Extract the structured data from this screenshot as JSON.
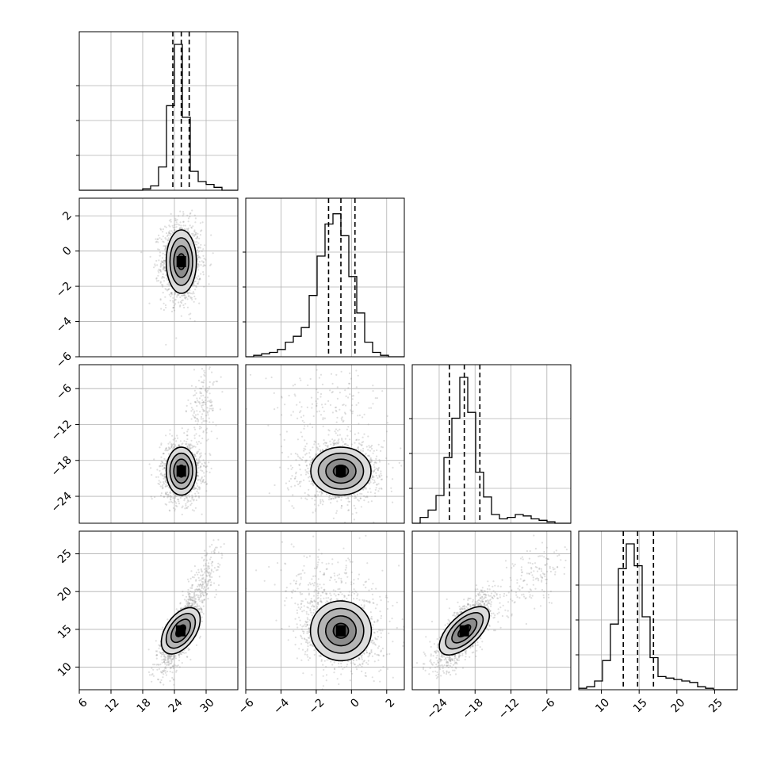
{
  "chart_data": {
    "type": "corner",
    "parameters": [
      {
        "ticks": [
          6,
          12,
          18,
          24,
          30
        ],
        "range": [
          6,
          36
        ]
      },
      {
        "ticks": [
          -6,
          -4,
          -2,
          0,
          2
        ],
        "range": [
          -6,
          3
        ]
      },
      {
        "ticks": [
          -24,
          -18,
          -12,
          -6
        ],
        "range": [
          -28.5,
          -2
        ]
      },
      {
        "ticks": [
          10,
          15,
          20,
          25
        ],
        "range": [
          7,
          28
        ]
      }
    ],
    "tick_labels": {
      "p0": [
        "6",
        "12",
        "18",
        "24",
        "30"
      ],
      "p1": [
        "−6",
        "−4",
        "−2",
        "0",
        "2"
      ],
      "p2": [
        "−24",
        "−18",
        "−12",
        "−6"
      ],
      "p3": [
        "10",
        "15",
        "20",
        "25"
      ]
    },
    "quantiles": [
      [
        23.7,
        25.3,
        26.8
      ],
      [
        -1.3,
        -0.6,
        0.2
      ],
      [
        -22.3,
        -19.8,
        -17.2
      ],
      [
        12.9,
        14.8,
        16.9
      ]
    ],
    "histograms": [
      {
        "edges": [
          6,
          7.5,
          9,
          10.5,
          12,
          13.5,
          15,
          16.5,
          18,
          19.5,
          21,
          22.5,
          24,
          25.5,
          27,
          28.5,
          30,
          31.5,
          33,
          34.5,
          36
        ],
        "counts": [
          0,
          0,
          0,
          0,
          0,
          0,
          0,
          0,
          0.01,
          0.03,
          0.16,
          0.58,
          1.0,
          0.5,
          0.13,
          0.06,
          0.04,
          0.02,
          0,
          0
        ]
      },
      {
        "edges": [
          -6,
          -5.55,
          -5.1,
          -4.65,
          -4.2,
          -3.75,
          -3.3,
          -2.85,
          -2.4,
          -1.95,
          -1.5,
          -1.05,
          -0.6,
          -0.15,
          0.3,
          0.75,
          1.2,
          1.65,
          2.1,
          2.55,
          3.0
        ],
        "counts": [
          0,
          0.01,
          0.02,
          0.03,
          0.05,
          0.1,
          0.14,
          0.2,
          0.42,
          0.69,
          0.91,
          0.98,
          0.83,
          0.55,
          0.3,
          0.1,
          0.03,
          0.01,
          0,
          0
        ]
      },
      {
        "edges": [
          -28.5,
          -27.175,
          -25.85,
          -24.525,
          -23.2,
          -21.875,
          -20.55,
          -19.225,
          -17.9,
          -16.575,
          -15.25,
          -13.925,
          -12.6,
          -11.275,
          -9.95,
          -8.625,
          -7.3,
          -5.975,
          -4.65,
          -3.325,
          -2.0
        ],
        "counts": [
          0,
          0.04,
          0.09,
          0.19,
          0.45,
          0.72,
          1.0,
          0.76,
          0.35,
          0.18,
          0.06,
          0.03,
          0.04,
          0.06,
          0.05,
          0.03,
          0.02,
          0.01,
          0,
          0
        ]
      },
      {
        "edges": [
          7,
          8.05,
          9.1,
          10.15,
          11.2,
          12.25,
          13.3,
          14.35,
          15.4,
          16.45,
          17.5,
          18.55,
          19.6,
          20.65,
          21.7,
          22.75,
          23.8,
          24.85,
          25.9,
          26.95,
          28.0
        ],
        "counts": [
          0.01,
          0.02,
          0.06,
          0.2,
          0.45,
          0.83,
          1.0,
          0.85,
          0.5,
          0.22,
          0.09,
          0.08,
          0.07,
          0.06,
          0.05,
          0.02,
          0.01,
          0,
          0,
          0
        ]
      }
    ],
    "pair_densities": [
      {
        "pair": [
          0,
          1
        ],
        "components": [
          {
            "weight": 1.0,
            "mean": [
              25.3,
              -0.6
            ],
            "sd": [
              1.5,
              0.9
            ],
            "rho": 0
          }
        ]
      },
      {
        "pair": [
          0,
          2
        ],
        "components": [
          {
            "weight": 0.93,
            "mean": [
              25.3,
              -19.8
            ],
            "sd": [
              1.5,
              2.0
            ],
            "rho": 0
          },
          {
            "weight": 0.07,
            "mean": [
              29.5,
              -8.5
            ],
            "sd": [
              1.2,
              2.4
            ],
            "rho": 0.2
          }
        ]
      },
      {
        "pair": [
          1,
          2
        ],
        "components": [
          {
            "weight": 0.93,
            "mean": [
              -0.6,
              -19.8
            ],
            "sd": [
              0.9,
              2.0
            ],
            "rho": 0
          },
          {
            "weight": 0.07,
            "mean": [
              -1.3,
              -8.5
            ],
            "sd": [
              1.4,
              2.4
            ],
            "rho": 0
          }
        ]
      },
      {
        "pair": [
          0,
          3
        ],
        "components": [
          {
            "weight": 0.93,
            "mean": [
              25.2,
              14.8
            ],
            "sd": [
              1.5,
              2.0
            ],
            "rho": 0.75
          },
          {
            "weight": 0.07,
            "mean": [
              30.0,
              22.0
            ],
            "sd": [
              1.3,
              1.8
            ],
            "rho": 0.6
          }
        ]
      },
      {
        "pair": [
          1,
          3
        ],
        "components": [
          {
            "weight": 0.93,
            "mean": [
              -0.6,
              14.8
            ],
            "sd": [
              0.9,
              2.0
            ],
            "rho": -0.15
          },
          {
            "weight": 0.07,
            "mean": [
              -1.4,
              21.5
            ],
            "sd": [
              1.3,
              1.8
            ],
            "rho": 0
          }
        ]
      },
      {
        "pair": [
          2,
          3
        ],
        "components": [
          {
            "weight": 0.93,
            "mean": [
              -19.8,
              14.8
            ],
            "sd": [
              2.0,
              2.0
            ],
            "rho": 0.75
          },
          {
            "weight": 0.07,
            "mean": [
              -8.5,
              22.0
            ],
            "sd": [
              2.3,
              1.8
            ],
            "rho": 0.5
          }
        ]
      }
    ],
    "contour_levels_sigma": [
      0.5,
      1.0,
      1.5,
      2.0
    ],
    "grid": true,
    "colors": {
      "line": "#000000",
      "grid": "#b0b0b0",
      "points": "#8c8c8c"
    }
  }
}
